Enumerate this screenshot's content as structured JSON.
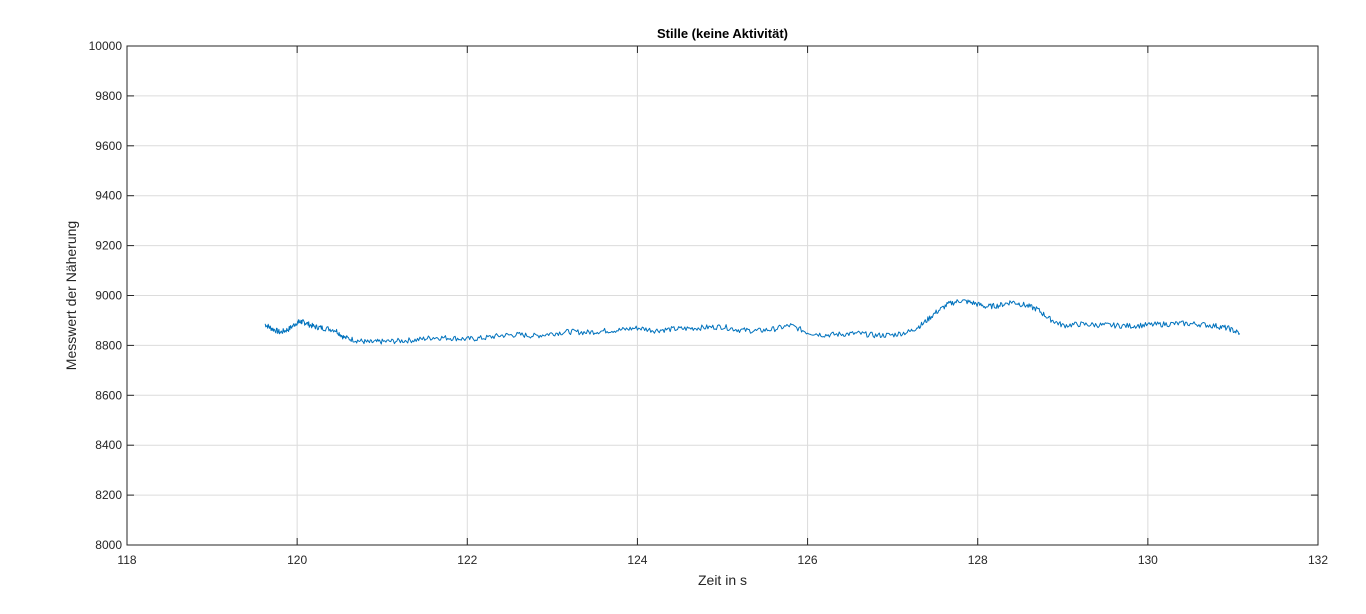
{
  "chart_data": {
    "type": "line",
    "title": "Stille (keine Aktivität)",
    "xlabel": "Zeit in s",
    "ylabel": "Messwert der Näherung",
    "xlim": [
      118,
      132
    ],
    "ylim": [
      8000,
      10000
    ],
    "xticks": [
      118,
      120,
      122,
      124,
      126,
      128,
      130,
      132
    ],
    "xtick_labels": [
      "118",
      "120",
      "122",
      "124",
      "126",
      "128",
      "130",
      "132"
    ],
    "yticks": [
      8000,
      8200,
      8400,
      8600,
      8800,
      9000,
      9200,
      9400,
      9600,
      9800,
      10000
    ],
    "ytick_labels": [
      "8000",
      "8200",
      "8400",
      "8600",
      "8800",
      "9000",
      "9200",
      "9400",
      "9600",
      "9800",
      "10000"
    ],
    "grid": true,
    "legend": "none",
    "colors": {
      "line": "#0072BD",
      "grid": "#dcdcdc",
      "axes": "#262626"
    },
    "series": [
      {
        "x": [
          119.62,
          119.7,
          119.8,
          119.9,
          120.0,
          120.05,
          120.1,
          120.2,
          120.3,
          120.45,
          120.55,
          120.7,
          120.85,
          121.0,
          121.2,
          121.4,
          121.6,
          121.8,
          122.0,
          122.2,
          122.4,
          122.6,
          122.8,
          123.0,
          123.2,
          123.4,
          123.6,
          123.8,
          124.0,
          124.2,
          124.4,
          124.6,
          124.8,
          125.0,
          125.2,
          125.4,
          125.6,
          125.8,
          126.0,
          126.2,
          126.4,
          126.6,
          126.8,
          127.0,
          127.2,
          127.35,
          127.5,
          127.65,
          127.8,
          127.95,
          128.1,
          128.25,
          128.4,
          128.55,
          128.7,
          128.85,
          129.0,
          129.2,
          129.4,
          129.6,
          129.8,
          130.0,
          130.2,
          130.4,
          130.6,
          130.8,
          130.95,
          131.08
        ],
        "y": [
          8885,
          8868,
          8852,
          8865,
          8892,
          8895,
          8890,
          8875,
          8870,
          8862,
          8832,
          8820,
          8812,
          8815,
          8818,
          8822,
          8832,
          8830,
          8825,
          8830,
          8840,
          8843,
          8838,
          8848,
          8855,
          8852,
          8858,
          8862,
          8870,
          8860,
          8865,
          8868,
          8872,
          8875,
          8862,
          8858,
          8865,
          8880,
          8852,
          8842,
          8845,
          8848,
          8840,
          8842,
          8855,
          8885,
          8930,
          8965,
          8980,
          8970,
          8955,
          8960,
          8975,
          8962,
          8945,
          8905,
          8880,
          8885,
          8882,
          8880,
          8878,
          8882,
          8885,
          8888,
          8885,
          8878,
          8868,
          8848
        ]
      }
    ]
  }
}
